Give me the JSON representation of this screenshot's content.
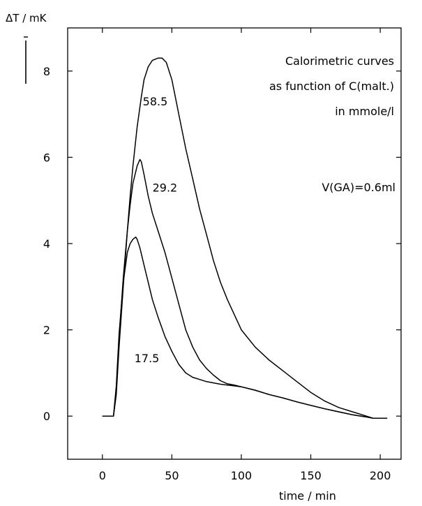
{
  "chart_data": {
    "type": "line",
    "ylabel": "ΔT / mK",
    "xlabel": "time / min",
    "xlim": [
      -25,
      215
    ],
    "ylim": [
      -1,
      9
    ],
    "xticks": [
      0,
      50,
      100,
      150,
      200
    ],
    "yticks": [
      0,
      2,
      4,
      6,
      8
    ],
    "xtick_labels": [
      "0",
      "50",
      "100",
      "150",
      "200"
    ],
    "ytick_labels": [
      "0",
      "2",
      "4",
      "6",
      "8"
    ],
    "grid": false,
    "annotations": {
      "title_line1": "Calorimetric curves",
      "title_line2": "as function of C(malt.)",
      "title_line3": "in mmole/l",
      "volume": "V(GA)=0.6ml"
    },
    "series": [
      {
        "name": "58.5",
        "label_at": [
          38,
          7.3
        ],
        "x": [
          0,
          8,
          10,
          12,
          15,
          18,
          20,
          22,
          25,
          28,
          30,
          33,
          36,
          40,
          43,
          46,
          50,
          55,
          60,
          65,
          70,
          75,
          80,
          85,
          90,
          100,
          110,
          120,
          130,
          140,
          150,
          160,
          170,
          180,
          190,
          195,
          205
        ],
        "y": [
          0,
          0,
          0.5,
          1.6,
          3.0,
          4.3,
          5.1,
          5.8,
          6.7,
          7.4,
          7.8,
          8.1,
          8.25,
          8.3,
          8.3,
          8.2,
          7.8,
          7.0,
          6.2,
          5.5,
          4.8,
          4.2,
          3.6,
          3.1,
          2.7,
          2.0,
          1.6,
          1.3,
          1.05,
          0.8,
          0.55,
          0.35,
          0.2,
          0.1,
          0.0,
          -0.05,
          -0.05
        ]
      },
      {
        "name": "29.2",
        "label_at": [
          45,
          5.3
        ],
        "x": [
          0,
          8,
          10,
          12,
          15,
          18,
          20,
          22,
          25,
          27,
          28,
          30,
          33,
          36,
          40,
          45,
          50,
          55,
          60,
          65,
          70,
          75,
          80,
          85,
          90,
          95,
          100,
          110,
          120,
          130,
          140,
          150,
          160,
          170,
          180,
          190,
          195,
          205
        ],
        "y": [
          0,
          0,
          0.6,
          1.8,
          3.2,
          4.3,
          4.9,
          5.4,
          5.8,
          5.95,
          5.9,
          5.6,
          5.1,
          4.7,
          4.3,
          3.8,
          3.2,
          2.6,
          2.0,
          1.6,
          1.3,
          1.1,
          0.95,
          0.82,
          0.75,
          0.72,
          0.68,
          0.6,
          0.5,
          0.42,
          0.33,
          0.25,
          0.17,
          0.1,
          0.03,
          -0.02,
          -0.05,
          -0.05
        ]
      },
      {
        "name": "17.5",
        "label_at": [
          32,
          1.35
        ],
        "x": [
          0,
          8,
          10,
          12,
          15,
          18,
          20,
          22,
          24,
          25,
          27,
          30,
          33,
          36,
          40,
          45,
          50,
          55,
          60,
          65,
          70,
          75,
          80,
          85,
          90,
          95,
          100,
          110,
          120,
          130,
          140,
          150,
          160,
          170,
          180,
          190,
          195,
          205
        ],
        "y": [
          0,
          0,
          0.7,
          1.9,
          3.1,
          3.8,
          4.0,
          4.1,
          4.15,
          4.1,
          3.9,
          3.5,
          3.1,
          2.7,
          2.3,
          1.85,
          1.5,
          1.2,
          1.0,
          0.9,
          0.85,
          0.8,
          0.77,
          0.74,
          0.72,
          0.7,
          0.68,
          0.6,
          0.5,
          0.42,
          0.33,
          0.25,
          0.17,
          0.1,
          0.03,
          -0.02,
          -0.05,
          -0.05
        ]
      }
    ]
  }
}
